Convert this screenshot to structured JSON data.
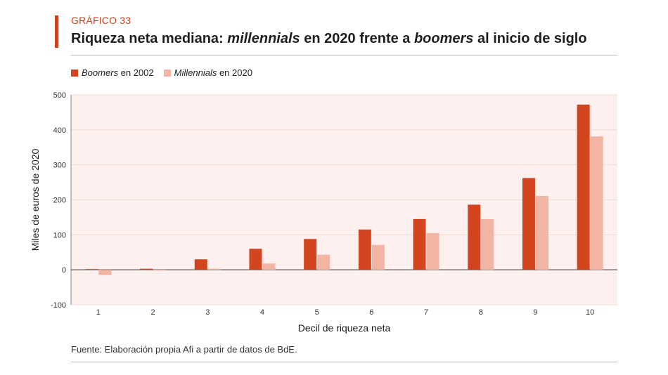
{
  "header": {
    "kicker": "GRÁFICO 33",
    "title_parts": [
      {
        "text": "Riqueza neta mediana: ",
        "italic": false
      },
      {
        "text": "millennials",
        "italic": true
      },
      {
        "text": " en 2020 frente a ",
        "italic": false
      },
      {
        "text": "boomers",
        "italic": true
      },
      {
        "text": " al inicio de siglo",
        "italic": false
      }
    ]
  },
  "legend": [
    {
      "italic": "Boomers",
      "rest": " en 2002"
    },
    {
      "italic": "Millennials",
      "rest": " en 2020"
    }
  ],
  "colors": {
    "accent": "#c8431f",
    "series_1": "#d3451f",
    "series_2": "#f2b4a3",
    "plot_bg": "#fdf0ee",
    "grid": "#f3d9d3"
  },
  "chart_data": {
    "type": "bar",
    "xlabel": "Decil de riqueza neta",
    "ylabel": "Miles de euros de 2020",
    "categories": [
      "1",
      "2",
      "3",
      "4",
      "5",
      "6",
      "7",
      "8",
      "9",
      "10"
    ],
    "ylim": [
      -100,
      500
    ],
    "yticks": [
      -100,
      0,
      100,
      200,
      300,
      400,
      500
    ],
    "grid": true,
    "legend_position": "top-left",
    "series": [
      {
        "name": "Boomers en 2002",
        "values": [
          2,
          3,
          30,
          60,
          88,
          115,
          145,
          186,
          262,
          472
        ]
      },
      {
        "name": "Millennials en 2020",
        "values": [
          -15,
          -2,
          3,
          18,
          43,
          71,
          105,
          145,
          211,
          381
        ]
      }
    ]
  },
  "footer": {
    "source": "Fuente: Elaboración propia Afi a partir de datos de BdE."
  }
}
